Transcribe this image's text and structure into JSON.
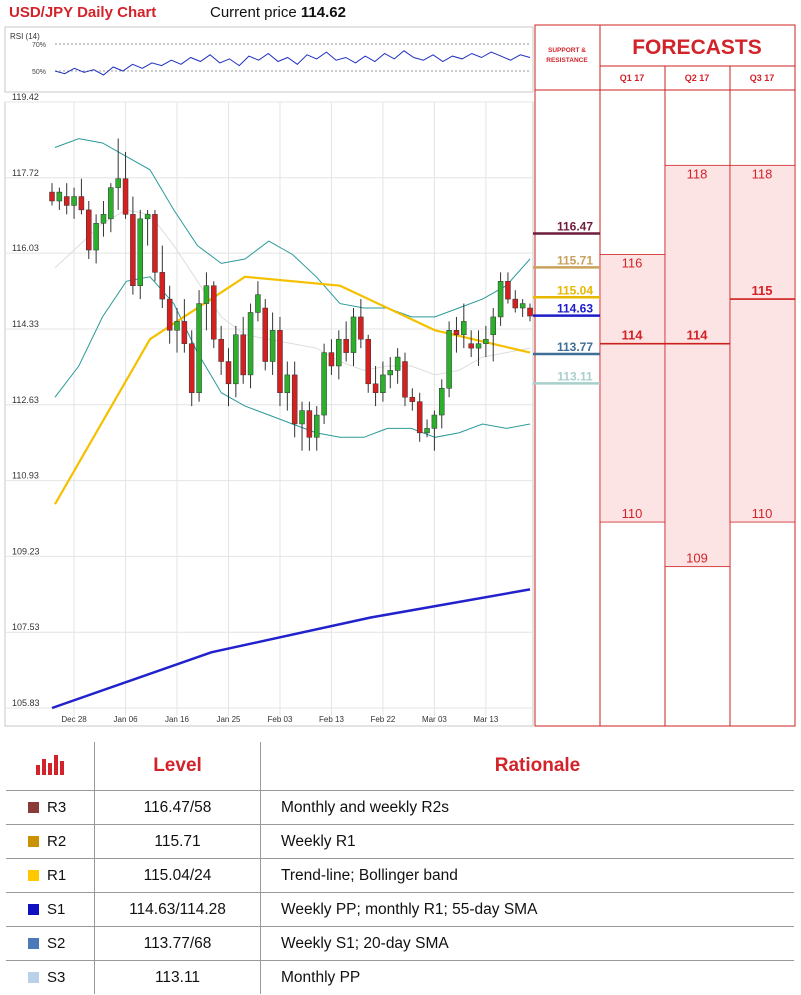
{
  "header": {
    "title": "USD/JPY Daily Chart",
    "current_price_label": "Current price",
    "current_price": "114.62"
  },
  "rsi": {
    "label": "RSI (14)",
    "levels": [
      "70%",
      "50%"
    ]
  },
  "forecasts": {
    "title": "FORECASTS",
    "sr_label_line1": "SUPPORT &",
    "sr_label_line2": "RESISTANCE",
    "quarters": [
      "Q1 17",
      "Q2 17",
      "Q3 17"
    ]
  },
  "chart_data": {
    "type": "candlestick",
    "title": "USD/JPY Daily Chart",
    "y_ticks": [
      "119.42",
      "117.72",
      "116.03",
      "114.33",
      "112.63",
      "110.93",
      "109.23",
      "107.53",
      "105.83"
    ],
    "ylim": [
      105.83,
      119.42
    ],
    "x_ticks": [
      "Dec 28",
      "Jan 06",
      "Jan 16",
      "Jan 25",
      "Feb 03",
      "Feb 13",
      "Feb 22",
      "Mar 03",
      "Mar 13"
    ],
    "candles": [
      [
        117.4,
        117.6,
        117.1,
        117.2
      ],
      [
        117.2,
        117.5,
        117.0,
        117.4
      ],
      [
        117.3,
        117.6,
        116.9,
        117.1
      ],
      [
        117.1,
        117.5,
        116.8,
        117.3
      ],
      [
        117.3,
        117.7,
        116.9,
        117.0
      ],
      [
        117.0,
        117.2,
        115.9,
        116.1
      ],
      [
        116.1,
        116.9,
        115.8,
        116.7
      ],
      [
        116.7,
        117.2,
        116.4,
        116.9
      ],
      [
        116.8,
        117.6,
        116.5,
        117.5
      ],
      [
        117.5,
        118.6,
        117.0,
        117.7
      ],
      [
        117.7,
        118.3,
        116.8,
        116.9
      ],
      [
        116.9,
        117.3,
        115.1,
        115.3
      ],
      [
        115.3,
        117.0,
        115.0,
        116.8
      ],
      [
        116.8,
        117.0,
        116.2,
        116.9
      ],
      [
        116.9,
        117.0,
        115.4,
        115.6
      ],
      [
        115.6,
        116.2,
        114.8,
        115.0
      ],
      [
        115.0,
        115.3,
        114.0,
        114.3
      ],
      [
        114.3,
        114.8,
        113.8,
        114.5
      ],
      [
        114.5,
        115.0,
        113.8,
        114.0
      ],
      [
        114.0,
        114.3,
        112.6,
        112.9
      ],
      [
        112.9,
        115.2,
        112.7,
        114.9
      ],
      [
        114.9,
        115.6,
        114.3,
        115.3
      ],
      [
        115.3,
        115.4,
        113.9,
        114.1
      ],
      [
        114.1,
        114.4,
        113.3,
        113.6
      ],
      [
        113.6,
        113.9,
        112.6,
        113.1
      ],
      [
        113.1,
        114.4,
        112.8,
        114.2
      ],
      [
        114.2,
        114.6,
        113.1,
        113.3
      ],
      [
        113.3,
        114.9,
        113.0,
        114.7
      ],
      [
        114.7,
        115.4,
        114.5,
        115.1
      ],
      [
        114.8,
        115.0,
        113.4,
        113.6
      ],
      [
        113.6,
        114.7,
        113.3,
        114.3
      ],
      [
        114.3,
        114.6,
        112.6,
        112.9
      ],
      [
        112.9,
        113.6,
        112.5,
        113.3
      ],
      [
        113.3,
        113.6,
        111.9,
        112.2
      ],
      [
        112.2,
        112.7,
        111.6,
        112.5
      ],
      [
        112.5,
        112.7,
        111.6,
        111.9
      ],
      [
        111.9,
        112.6,
        111.6,
        112.4
      ],
      [
        112.4,
        114.0,
        112.2,
        113.8
      ],
      [
        113.8,
        114.1,
        113.3,
        113.5
      ],
      [
        113.5,
        114.3,
        113.2,
        114.1
      ],
      [
        114.1,
        114.5,
        113.6,
        113.8
      ],
      [
        113.8,
        114.8,
        113.5,
        114.6
      ],
      [
        114.6,
        115.0,
        113.9,
        114.1
      ],
      [
        114.1,
        114.2,
        112.9,
        113.1
      ],
      [
        113.1,
        113.5,
        112.6,
        112.9
      ],
      [
        112.9,
        113.6,
        112.7,
        113.3
      ],
      [
        113.3,
        113.7,
        113.0,
        113.4
      ],
      [
        113.4,
        113.9,
        113.1,
        113.7
      ],
      [
        113.6,
        113.8,
        112.6,
        112.8
      ],
      [
        112.8,
        113.0,
        112.5,
        112.7
      ],
      [
        112.7,
        112.9,
        111.8,
        112.0
      ],
      [
        112.0,
        112.3,
        111.9,
        112.1
      ],
      [
        112.1,
        112.5,
        111.6,
        112.4
      ],
      [
        112.4,
        113.2,
        112.1,
        113.0
      ],
      [
        113.0,
        114.5,
        112.8,
        114.3
      ],
      [
        114.3,
        114.6,
        113.8,
        114.2
      ],
      [
        114.2,
        114.9,
        113.9,
        114.5
      ],
      [
        114.0,
        114.3,
        113.7,
        113.9
      ],
      [
        113.9,
        114.3,
        113.5,
        114.0
      ],
      [
        114.0,
        114.4,
        113.7,
        114.1
      ],
      [
        114.2,
        114.8,
        113.6,
        114.6
      ],
      [
        114.6,
        115.6,
        114.4,
        115.4
      ],
      [
        115.4,
        115.6,
        114.9,
        115.0
      ],
      [
        115.0,
        115.2,
        114.7,
        114.8
      ],
      [
        114.8,
        115.0,
        114.6,
        114.9
      ],
      [
        114.8,
        114.9,
        114.5,
        114.62
      ]
    ],
    "ma_long": [
      105.83,
      107.08,
      107.86,
      108.49
    ],
    "sma_55": [
      110.4,
      114.1,
      115.5,
      115.3,
      114.3,
      113.8
    ],
    "sr_levels": [
      {
        "value": "116.47",
        "color": "#6e1e3c"
      },
      {
        "value": "115.71",
        "color": "#c8a25c"
      },
      {
        "value": "115.04",
        "color": "#e8b800"
      },
      {
        "value": "114.63",
        "color": "#1c1cc8"
      },
      {
        "value": "113.77",
        "color": "#3f6f96"
      },
      {
        "value": "113.11",
        "color": "#a8cfcc"
      }
    ],
    "forecast_q1": {
      "high": "116",
      "mid": "114",
      "low": "110"
    },
    "forecast_q2": {
      "high": "118",
      "mid": "114",
      "low": "109"
    },
    "forecast_q3": {
      "high": "118",
      "mid": "115",
      "low": "110"
    }
  },
  "table": {
    "header_level": "Level",
    "header_rationale": "Rationale",
    "rows": [
      {
        "name": "R3",
        "level": "116.47/58",
        "rationale": "Monthly and weekly R2s",
        "color": "#8b3a3a"
      },
      {
        "name": "R2",
        "level": "115.71",
        "rationale": "Weekly R1",
        "color": "#c89200"
      },
      {
        "name": "R1",
        "level": "115.04/24",
        "rationale": "Trend-line; Bollinger band",
        "color": "#ffc800"
      },
      {
        "name": "S1",
        "level": "114.63/114.28",
        "rationale": "Weekly PP; monthly R1; 55-day SMA",
        "color": "#1010c0"
      },
      {
        "name": "S2",
        "level": "113.77/68",
        "rationale": "Weekly S1; 20-day SMA",
        "color": "#4a7ab8"
      },
      {
        "name": "S3",
        "level": "113.11",
        "rationale": "Monthly PP",
        "color": "#b8d0e8"
      }
    ]
  }
}
